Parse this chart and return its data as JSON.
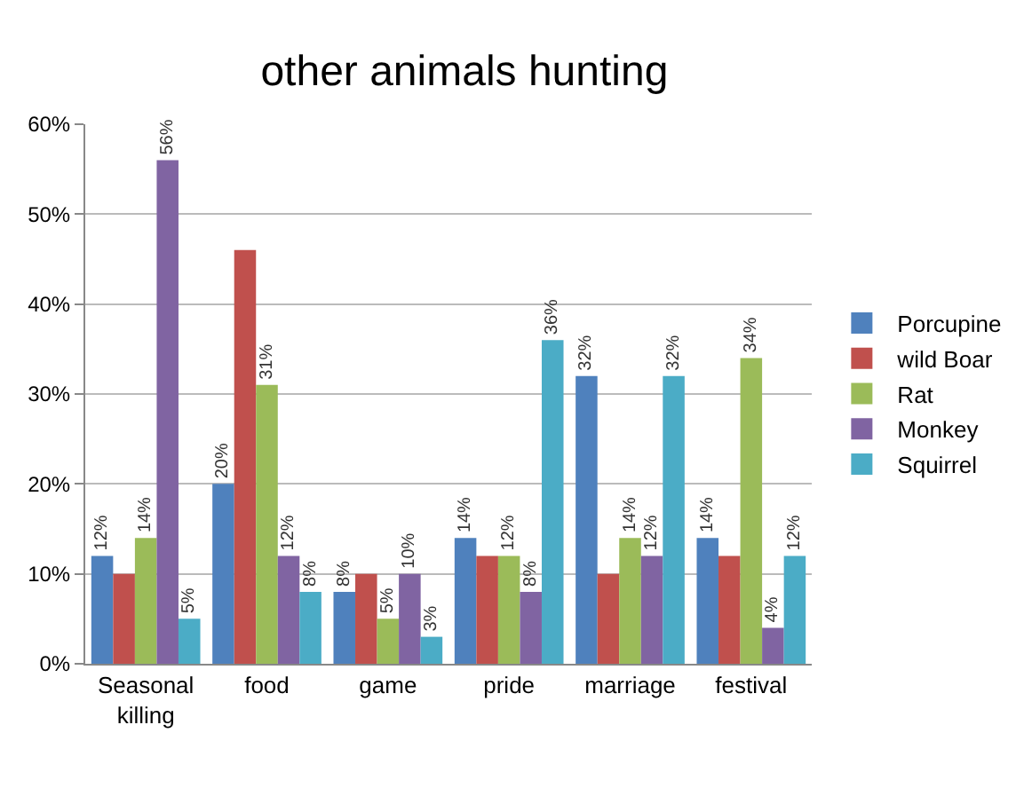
{
  "chart_data": {
    "type": "bar",
    "title": "other animals hunting",
    "categories": [
      "Seasonal killing",
      "food",
      "game",
      "pride",
      "marriage",
      "festival"
    ],
    "series": [
      {
        "name": "Porcupine",
        "color": "#4f81bd",
        "values": [
          12,
          20,
          8,
          14,
          32,
          14
        ],
        "value_labels": [
          "12%",
          "20%",
          "8%",
          "14%",
          "32%",
          "14%"
        ]
      },
      {
        "name": "wild Boar",
        "color": "#c0504d",
        "values": [
          10,
          46,
          10,
          12,
          10,
          12
        ],
        "value_labels": [
          null,
          null,
          null,
          null,
          null,
          null
        ]
      },
      {
        "name": "Rat",
        "color": "#9bbb59",
        "values": [
          14,
          31,
          5,
          12,
          14,
          34
        ],
        "value_labels": [
          "14%",
          "31%",
          "5%",
          "12%",
          "14%",
          "34%"
        ]
      },
      {
        "name": "Monkey",
        "color": "#8064a2",
        "values": [
          56,
          12,
          10,
          8,
          12,
          4
        ],
        "value_labels": [
          "56%",
          "12%",
          "10%",
          "8%",
          "12%",
          "4%"
        ]
      },
      {
        "name": "Squirrel",
        "color": "#4bacc6",
        "values": [
          5,
          8,
          3,
          36,
          32,
          12
        ],
        "value_labels": [
          "5%",
          "8%",
          "3%",
          "36%",
          "32%",
          "12%"
        ]
      }
    ],
    "ylim": [
      0,
      60
    ],
    "yticks": [
      {
        "value": 0,
        "label": "0%"
      },
      {
        "value": 10,
        "label": "10%"
      },
      {
        "value": 20,
        "label": "20%"
      },
      {
        "value": 30,
        "label": "30%"
      },
      {
        "value": 40,
        "label": "40%"
      },
      {
        "value": 50,
        "label": "50%"
      },
      {
        "value": 60,
        "label": "60%"
      }
    ],
    "grid": "y",
    "legend": "right"
  }
}
